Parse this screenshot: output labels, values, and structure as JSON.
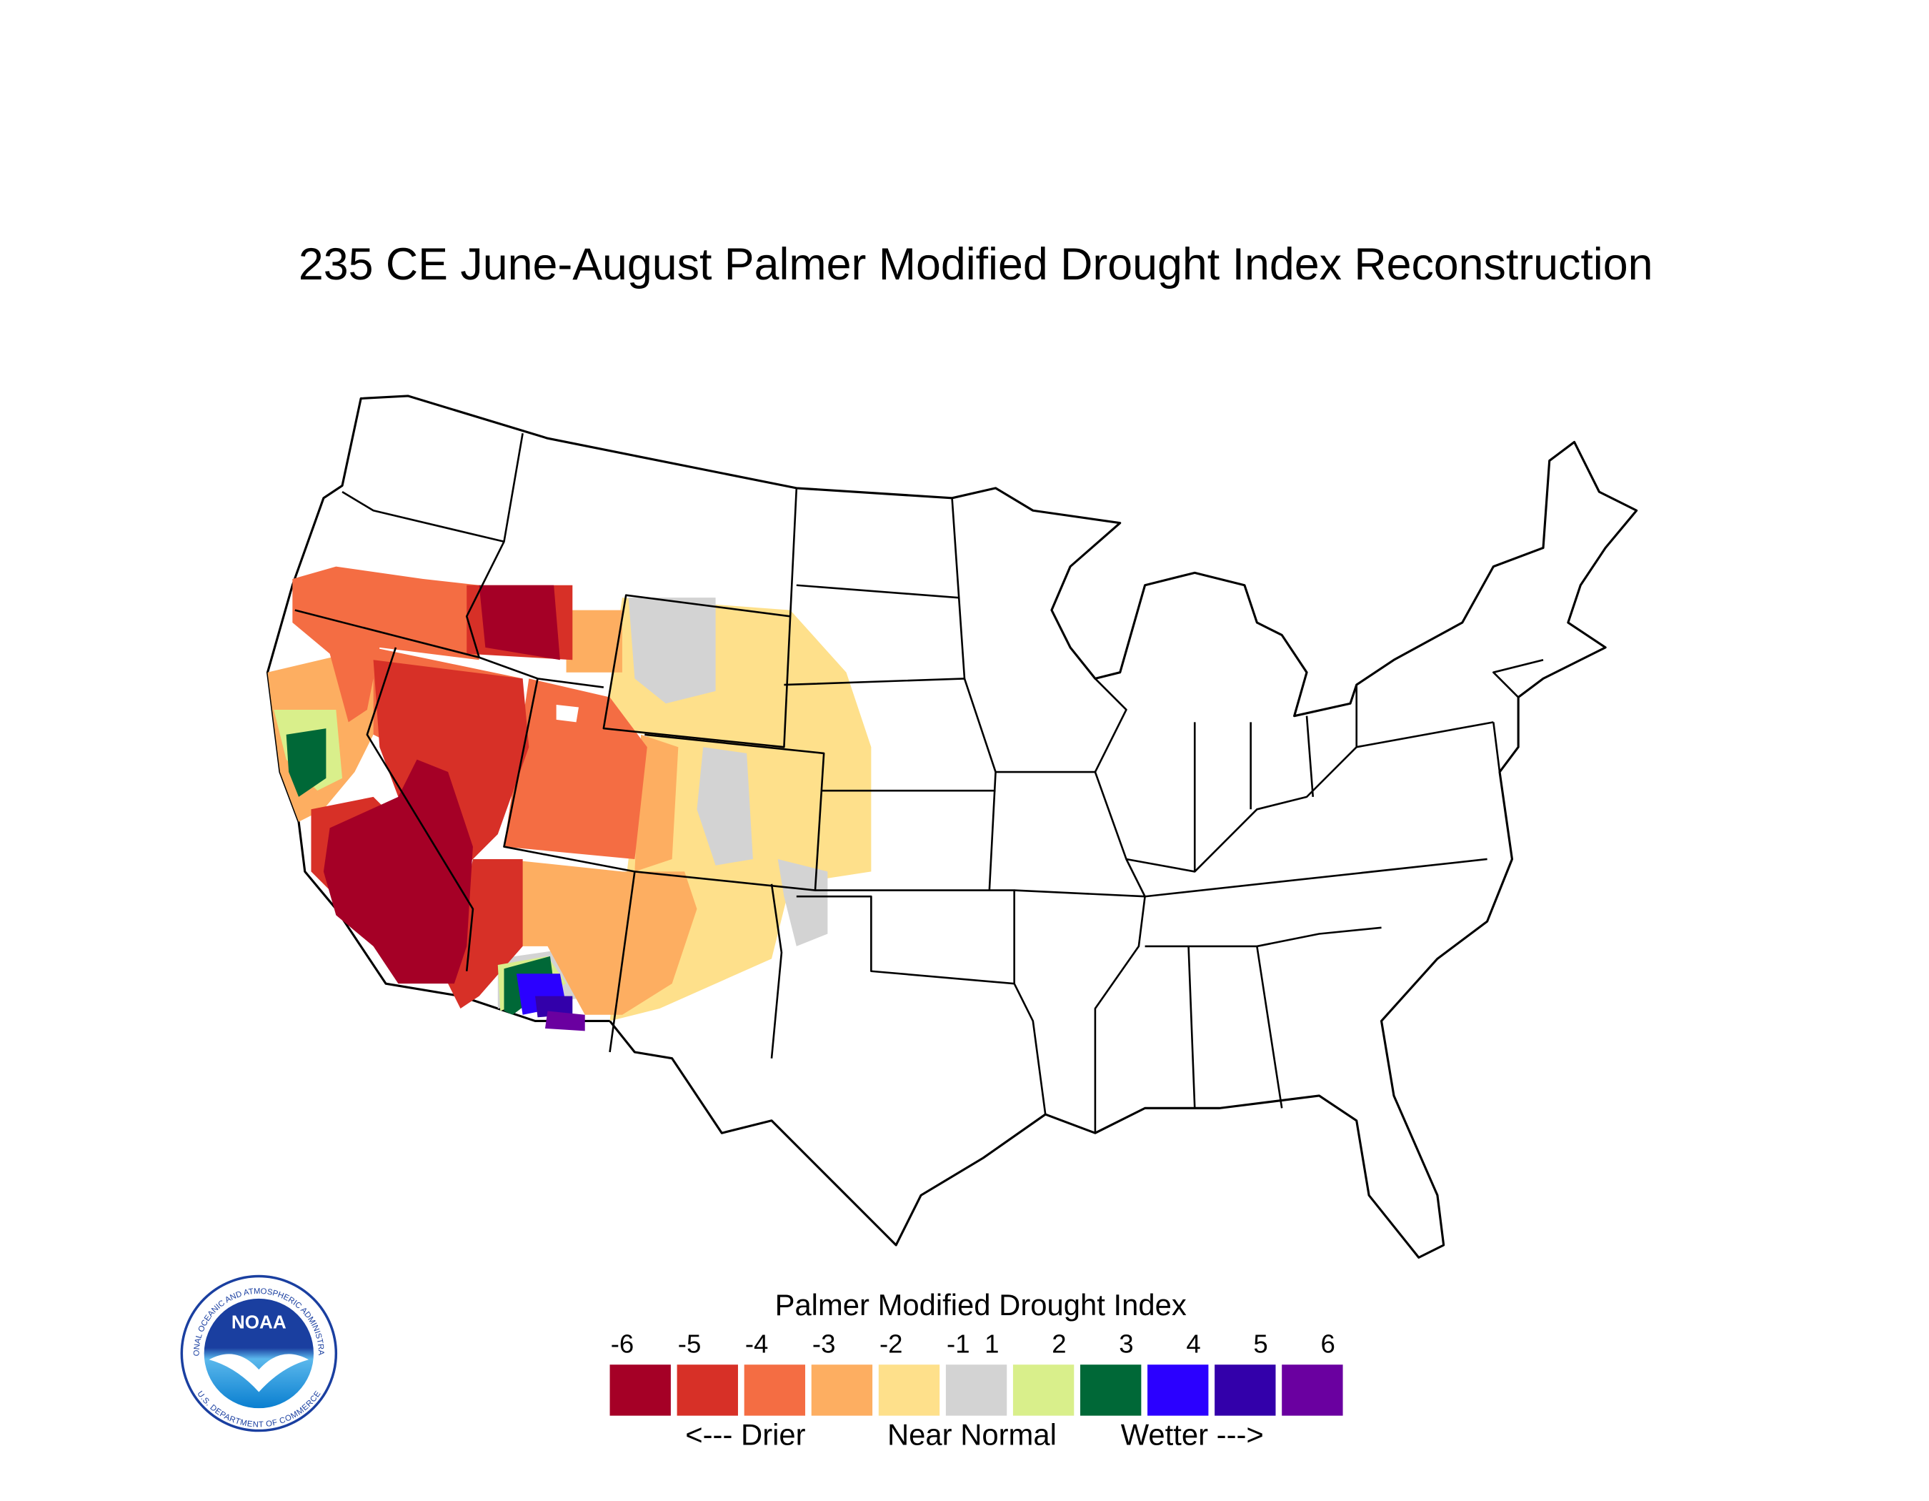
{
  "header": {
    "title": "235 CE  June-August  Palmer Modified Drought Index Reconstruction"
  },
  "legend": {
    "title": "Palmer Modified Drought Index",
    "ticks": [
      -6,
      -5,
      -4,
      -3,
      -2,
      -1,
      1,
      2,
      3,
      4,
      5,
      6
    ],
    "colors": [
      "#a50026",
      "#d73027",
      "#f46d43",
      "#fdae61",
      "#fee08b",
      "#d3d3d3",
      "#d9ef8b",
      "#006837",
      "#2b00ff",
      "#3300aa",
      "#6a00a0"
    ],
    "captions": [
      "<--- Drier",
      "Near Normal",
      "Wetter --->"
    ]
  },
  "logo": {
    "name": "NOAA",
    "ring_top": "NATIONAL OCEANIC AND ATMOSPHERIC ADMINISTRATION",
    "ring_bottom": "U.S. DEPARTMENT OF COMMERCE"
  }
}
